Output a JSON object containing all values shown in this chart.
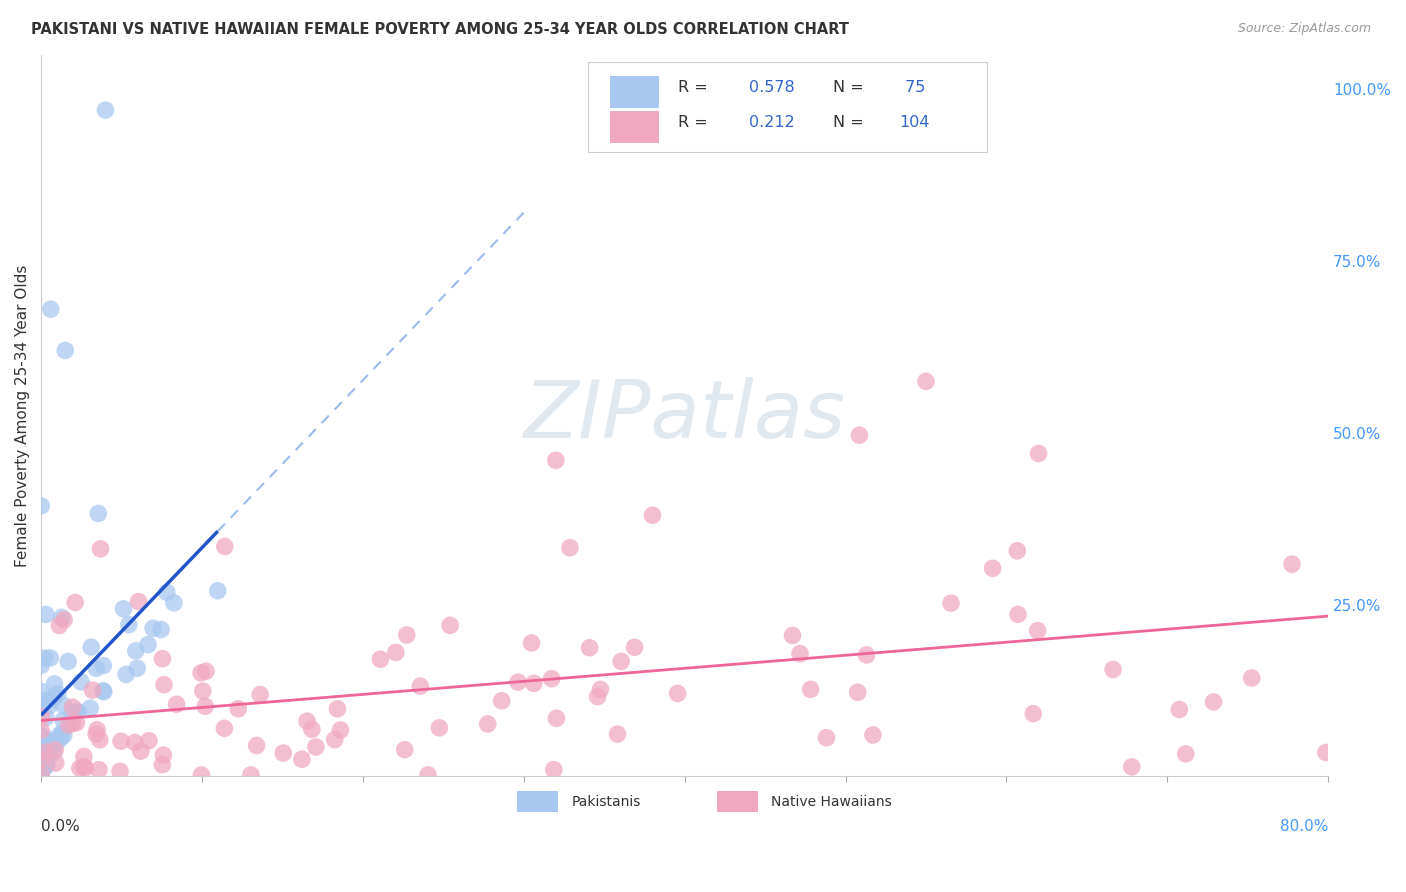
{
  "title": "PAKISTANI VS NATIVE HAWAIIAN FEMALE POVERTY AMONG 25-34 YEAR OLDS CORRELATION CHART",
  "source": "Source: ZipAtlas.com",
  "ylabel": "Female Poverty Among 25-34 Year Olds",
  "right_yticks": [
    "100.0%",
    "75.0%",
    "50.0%",
    "25.0%"
  ],
  "right_ytick_vals": [
    1.0,
    0.75,
    0.5,
    0.25
  ],
  "R_pak": 0.578,
  "N_pak": 75,
  "R_haw": 0.212,
  "N_haw": 104,
  "color_pak": "#a8c8f0",
  "color_haw": "#f0a8c0",
  "line_pak": "#2255cc",
  "line_haw": "#ee6699",
  "line_dashed_pak": "#99bbee",
  "background": "#ffffff",
  "grid_color": "#dddddd",
  "xlim": [
    0.0,
    0.8
  ],
  "ylim": [
    0.0,
    1.05
  ],
  "watermark": "ZIPatlas",
  "legend_color_R": "#3366cc",
  "legend_color_N": "#3366cc",
  "title_color": "#333333",
  "source_color": "#999999",
  "axis_label_color": "#333333",
  "right_tick_color": "#4499ff"
}
